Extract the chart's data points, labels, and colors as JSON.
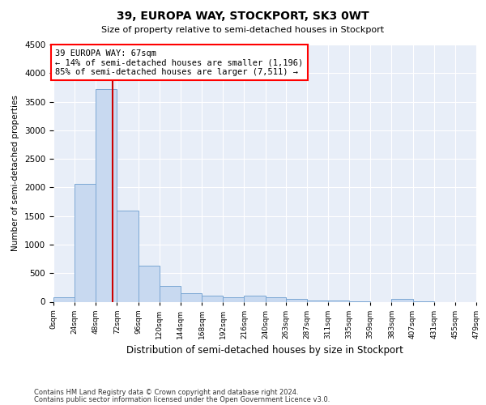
{
  "title": "39, EUROPA WAY, STOCKPORT, SK3 0WT",
  "subtitle": "Size of property relative to semi-detached houses in Stockport",
  "xlabel": "Distribution of semi-detached houses by size in Stockport",
  "ylabel": "Number of semi-detached properties",
  "footnote1": "Contains HM Land Registry data © Crown copyright and database right 2024.",
  "footnote2": "Contains public sector information licensed under the Open Government Licence v3.0.",
  "annotation_title": "39 EUROPA WAY: 67sqm",
  "annotation_line1": "← 14% of semi-detached houses are smaller (1,196)",
  "annotation_line2": "85% of semi-detached houses are larger (7,511) →",
  "property_size": 67,
  "bar_color": "#c8d9f0",
  "bar_edge_color": "#7ba7d4",
  "redline_color": "#cc0000",
  "background_color": "#e8eef8",
  "ylim": [
    0,
    4500
  ],
  "yticks": [
    0,
    500,
    1000,
    1500,
    2000,
    2500,
    3000,
    3500,
    4000,
    4500
  ],
  "bin_edges": [
    0,
    24,
    48,
    72,
    96,
    120,
    144,
    168,
    192,
    216,
    240,
    263,
    287,
    311,
    335,
    359,
    383,
    407,
    431,
    455,
    479
  ],
  "counts": [
    80,
    2060,
    3720,
    1600,
    630,
    280,
    150,
    100,
    80,
    100,
    80,
    45,
    25,
    15,
    5,
    0,
    50,
    5,
    0,
    0
  ]
}
